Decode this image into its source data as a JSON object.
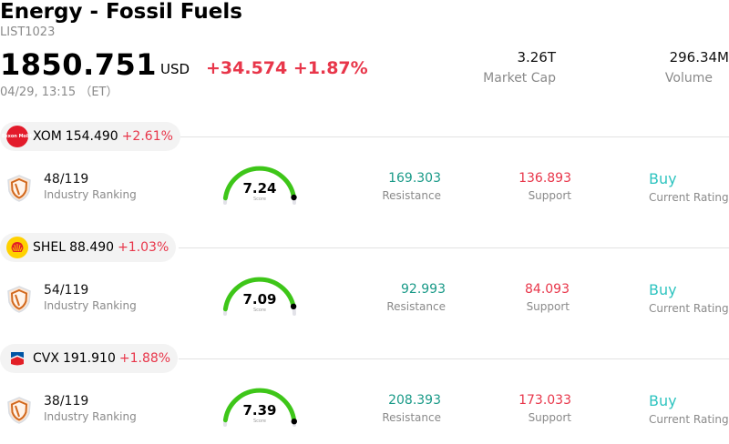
{
  "header": {
    "title": "Energy - Fossil Fuels",
    "code": "LIST1023",
    "price": "1850.751",
    "currency": "USD",
    "change": "+34.574 +1.87%",
    "timestamp": "04/29, 13:15 （ET）"
  },
  "stats": {
    "market_cap_value": "3.26T",
    "market_cap_label": "Market Cap",
    "volume_value": "296.34M",
    "volume_label": "Volume"
  },
  "colors": {
    "negative": "#e8364a",
    "resistance": "#1a9a88",
    "rating": "#2ec4c0",
    "gauge_fill": "#3ec619",
    "gauge_track": "#e2e2e8"
  },
  "labels": {
    "industry_ranking": "Industry Ranking",
    "score": "Score",
    "resistance": "Resistance",
    "support": "Support",
    "current_rating": "Current Rating"
  },
  "stocks": [
    {
      "ticker": "XOM",
      "price": "154.490",
      "change": "+2.61%",
      "logo": "exxon-mobil-logo",
      "logo_text": "Exxon Mobil",
      "rank": "48/119",
      "score": "7.24",
      "score_value": 7.24,
      "resistance": "169.303",
      "support": "136.893",
      "rating": "Buy"
    },
    {
      "ticker": "SHEL",
      "price": "88.490",
      "change": "+1.03%",
      "logo": "shell-logo",
      "rank": "54/119",
      "score": "7.09",
      "score_value": 7.09,
      "resistance": "92.993",
      "support": "84.093",
      "rating": "Buy"
    },
    {
      "ticker": "CVX",
      "price": "191.910",
      "change": "+1.88%",
      "logo": "chevron-logo",
      "rank": "38/119",
      "score": "7.39",
      "score_value": 7.39,
      "resistance": "208.393",
      "support": "173.033",
      "rating": "Buy"
    }
  ]
}
